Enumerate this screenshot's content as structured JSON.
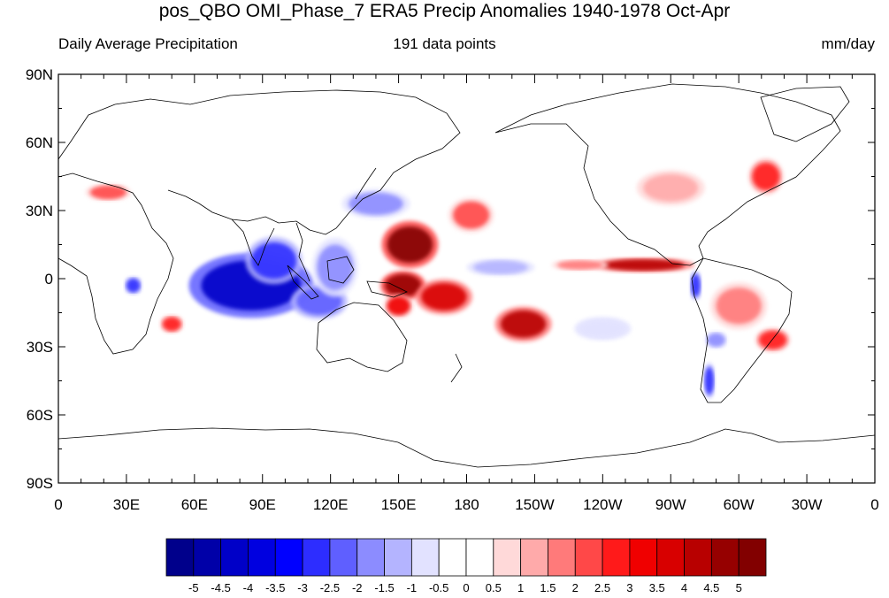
{
  "title": "pos_QBO OMI_Phase_7 ERA5 Precip Anomalies 1940-1978 Oct-Apr",
  "subtitle_left": "Daily Average Precipitation",
  "subtitle_center": "191 data points",
  "subtitle_right": "mm/day",
  "lat_ticks": [
    {
      "value": 90,
      "label": "90N"
    },
    {
      "value": 60,
      "label": "60N"
    },
    {
      "value": 30,
      "label": "30N"
    },
    {
      "value": 0,
      "label": "0"
    },
    {
      "value": -30,
      "label": "30S"
    },
    {
      "value": -60,
      "label": "60S"
    },
    {
      "value": -90,
      "label": "90S"
    }
  ],
  "lon_ticks": [
    {
      "value": 0,
      "label": "0"
    },
    {
      "value": 30,
      "label": "30E"
    },
    {
      "value": 60,
      "label": "60E"
    },
    {
      "value": 90,
      "label": "90E"
    },
    {
      "value": 120,
      "label": "120E"
    },
    {
      "value": 150,
      "label": "150E"
    },
    {
      "value": 180,
      "label": "180"
    },
    {
      "value": 210,
      "label": "150W"
    },
    {
      "value": 240,
      "label": "120W"
    },
    {
      "value": 270,
      "label": "90W"
    },
    {
      "value": 300,
      "label": "60W"
    },
    {
      "value": 330,
      "label": "30W"
    },
    {
      "value": 360,
      "label": "0"
    }
  ],
  "colorbar": {
    "labels": [
      "-5",
      "-4.5",
      "-4",
      "-3.5",
      "-3",
      "-2.5",
      "-2",
      "-1.5",
      "-1",
      "-0.5",
      "0",
      "0.5",
      "1",
      "1.5",
      "2",
      "2.5",
      "3",
      "3.5",
      "4",
      "4.5",
      "5"
    ],
    "colors": [
      "#00008b",
      "#0000a8",
      "#0000c8",
      "#0000e0",
      "#0000ff",
      "#2d2dff",
      "#5f5fff",
      "#8c8cff",
      "#b4b4ff",
      "#e2e2ff",
      "#ffffff",
      "#ffffff",
      "#ffd9d9",
      "#ffaaaa",
      "#ff7a7a",
      "#ff4848",
      "#ff1a1a",
      "#f00000",
      "#d80000",
      "#b80000",
      "#960000",
      "#820000"
    ]
  },
  "anomalies": [
    {
      "lon": 85,
      "lat": -3,
      "rx": 22,
      "ry": 11,
      "value": -4.5
    },
    {
      "lon": 95,
      "lat": 8,
      "rx": 10,
      "ry": 8,
      "value": -3
    },
    {
      "lon": 115,
      "lat": -10,
      "rx": 10,
      "ry": 6,
      "value": -2.5
    },
    {
      "lon": 122,
      "lat": 5,
      "rx": 8,
      "ry": 10,
      "value": -2
    },
    {
      "lon": 140,
      "lat": 33,
      "rx": 12,
      "ry": 5,
      "value": -2
    },
    {
      "lon": 155,
      "lat": 15,
      "rx": 10,
      "ry": 8,
      "value": 5
    },
    {
      "lon": 152,
      "lat": -3,
      "rx": 8,
      "ry": 5,
      "value": 4.5
    },
    {
      "lon": 170,
      "lat": -8,
      "rx": 10,
      "ry": 6,
      "value": 3.5
    },
    {
      "lon": 150,
      "lat": -12,
      "rx": 5,
      "ry": 4,
      "value": 3
    },
    {
      "lon": 205,
      "lat": -20,
      "rx": 10,
      "ry": 6,
      "value": 4
    },
    {
      "lon": 182,
      "lat": 28,
      "rx": 8,
      "ry": 6,
      "value": 2
    },
    {
      "lon": 258,
      "lat": 6,
      "rx": 18,
      "ry": 2.5,
      "value": 4
    },
    {
      "lon": 230,
      "lat": 6,
      "rx": 10,
      "ry": 2,
      "value": 1.5
    },
    {
      "lon": 281,
      "lat": -3,
      "rx": 2,
      "ry": 5,
      "value": -3
    },
    {
      "lon": 300,
      "lat": -12,
      "rx": 10,
      "ry": 8,
      "value": 1.5
    },
    {
      "lon": 315,
      "lat": -27,
      "rx": 6,
      "ry": 4,
      "value": 2.5
    },
    {
      "lon": 290,
      "lat": -27,
      "rx": 4,
      "ry": 3,
      "value": -2
    },
    {
      "lon": 287,
      "lat": -45,
      "rx": 2,
      "ry": 6,
      "value": -3
    },
    {
      "lon": 270,
      "lat": 40,
      "rx": 12,
      "ry": 6,
      "value": 1
    },
    {
      "lon": 312,
      "lat": 45,
      "rx": 6,
      "ry": 6,
      "value": 2.5
    },
    {
      "lon": 22,
      "lat": 38,
      "rx": 8,
      "ry": 3,
      "value": 2
    },
    {
      "lon": 33,
      "lat": -3,
      "rx": 3,
      "ry": 3,
      "value": -3
    },
    {
      "lon": 50,
      "lat": -20,
      "rx": 4,
      "ry": 3,
      "value": 2.5
    },
    {
      "lon": 195,
      "lat": 5,
      "rx": 12,
      "ry": 3,
      "value": -1.5
    },
    {
      "lon": 240,
      "lat": -22,
      "rx": 10,
      "ry": 4,
      "value": -1
    }
  ]
}
